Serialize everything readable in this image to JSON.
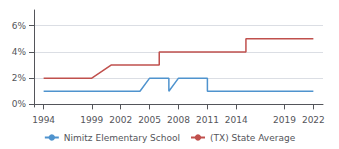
{
  "chart_data": {
    "type": "line",
    "series": [
      {
        "name": "Nimitz Elementary School",
        "color": "#4f93ce",
        "x": [
          1994,
          2004,
          2004,
          2005,
          2007,
          2007,
          2008,
          2009,
          2009,
          2010,
          2011,
          2011,
          2022
        ],
        "values": [
          0.01,
          0.01,
          0.01,
          0.02,
          0.02,
          0.01,
          0.02,
          0.02,
          0.02,
          0.02,
          0.02,
          0.01,
          0.01
        ]
      },
      {
        "name": "(TX) State Average",
        "color": "#c0504d",
        "x": [
          1994,
          1999,
          1999,
          2001,
          2001,
          2006,
          2006,
          2013,
          2013,
          2015,
          2015,
          2022
        ],
        "values": [
          0.02,
          0.02,
          0.02,
          0.03,
          0.03,
          0.03,
          0.04,
          0.04,
          0.04,
          0.04,
          0.05,
          0.05
        ]
      }
    ],
    "xlim": [
      1993,
      2023
    ],
    "xticks": [
      1994,
      1999,
      2002,
      2005,
      2008,
      2011,
      2014,
      2019,
      2022
    ],
    "ylim": [
      -0.002,
      0.072
    ],
    "yticks": [
      {
        "value": 0.0,
        "label": "0%"
      },
      {
        "value": 0.02,
        "label": "2%"
      },
      {
        "value": 0.04,
        "label": "4%"
      },
      {
        "value": 0.06,
        "label": "6%"
      }
    ],
    "grid": "y",
    "legend": "bottom"
  }
}
